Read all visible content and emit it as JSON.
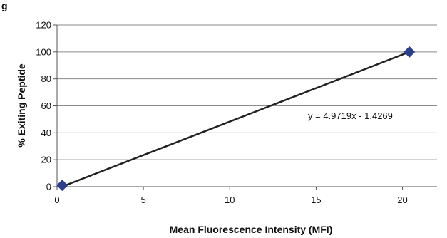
{
  "figure_label": "g",
  "chart_data": {
    "type": "scatter",
    "title": "",
    "xlabel": "Mean Fluorescence Intensity (MFI)",
    "ylabel": "% Exiting Peptide",
    "xlim": [
      0,
      22
    ],
    "ylim": [
      0,
      120
    ],
    "x_ticks": [
      0,
      5,
      10,
      15,
      20
    ],
    "y_ticks": [
      0,
      20,
      40,
      60,
      80,
      100,
      120
    ],
    "grid": "horizontal",
    "series": [
      {
        "marker": "diamond",
        "color": "#2b3f8f",
        "points": [
          {
            "x": 0.3,
            "y": 1
          },
          {
            "x": 20.4,
            "y": 100
          }
        ]
      }
    ],
    "trendline": {
      "type": "linear",
      "slope": 4.9719,
      "intercept": -1.4269,
      "color": "#222222",
      "equation_label": "y = 4.9719x - 1.4269"
    }
  }
}
